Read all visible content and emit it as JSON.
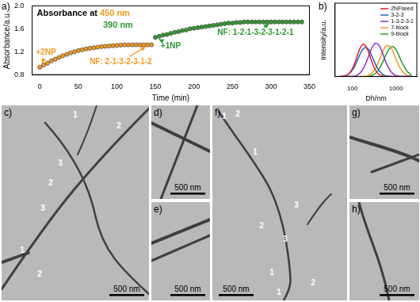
{
  "chart_data": [
    {
      "type": "scatter",
      "label": "a)",
      "title": "Absorbance at",
      "x_label": "Time (min)",
      "y_label": "Absorbance/a.u.",
      "series": [
        {
          "name": "450 nm",
          "color": "#f39a1e",
          "marker": "circle",
          "x": [
            0,
            5,
            10,
            15,
            20,
            25,
            30,
            35,
            40,
            45,
            50,
            55,
            60,
            65,
            70,
            75,
            80,
            85,
            90,
            95,
            100,
            105,
            110,
            115,
            120,
            125,
            130,
            135,
            140,
            145
          ],
          "values": [
            0.93,
            0.97,
            1.0,
            1.04,
            1.07,
            1.1,
            1.13,
            1.155,
            1.18,
            1.2,
            1.22,
            1.235,
            1.25,
            1.26,
            1.27,
            1.28,
            1.29,
            1.295,
            1.3,
            1.305,
            1.31,
            1.315,
            1.32,
            1.32,
            1.32,
            1.32,
            1.32,
            1.32,
            1.32,
            1.32
          ]
        },
        {
          "name": "390 nm",
          "color": "#2e9a2e",
          "marker": "circle",
          "x": [
            150,
            155,
            160,
            165,
            170,
            175,
            180,
            185,
            190,
            195,
            200,
            205,
            210,
            215,
            220,
            225,
            230,
            235,
            240,
            245,
            250,
            255,
            260,
            265,
            270,
            275,
            280,
            285,
            290,
            295,
            300,
            305,
            310,
            315,
            320,
            325,
            330,
            335,
            340
          ],
          "values": [
            1.45,
            1.47,
            1.49,
            1.5,
            1.52,
            1.54,
            1.55,
            1.57,
            1.58,
            1.6,
            1.61,
            1.62,
            1.63,
            1.64,
            1.65,
            1.66,
            1.67,
            1.68,
            1.69,
            1.7,
            1.7,
            1.71,
            1.71,
            1.72,
            1.72,
            1.72,
            1.72,
            1.72,
            1.72,
            1.72,
            1.72,
            1.72,
            1.72,
            1.72,
            1.72,
            1.72,
            1.72,
            1.72,
            1.72
          ]
        }
      ],
      "xlim": [
        -10,
        350
      ],
      "xticks": [
        0,
        50,
        100,
        150,
        200,
        250,
        300,
        350
      ],
      "ylim": [
        0.8,
        2.0
      ],
      "yticks": [
        0.8,
        1.2,
        1.6,
        {
          "value": 2,
          "label": "2.0"
        }
      ],
      "grid": false,
      "annotations": [
        {
          "text": "+2NP",
          "x": 8,
          "y": 1.18,
          "color": "#f39a1e",
          "arrow_to": [
            2,
            0.96
          ]
        },
        {
          "text": "NF: 2-1-3-2-3-1-2",
          "x": 105,
          "y": 1.02,
          "color": "#f39a1e",
          "arrow_to": [
            140,
            1.31
          ]
        },
        {
          "text": "+1NP",
          "x": 170,
          "y": 1.3,
          "color": "#2e9a2e",
          "arrow_to": [
            152,
            1.44
          ]
        },
        {
          "text": "NF: 1-2-1-3-2-3-1-2-1",
          "x": 280,
          "y": 1.53,
          "color": "#2e9a2e",
          "arrow_to": [
            300,
            1.71
          ]
        }
      ]
    },
    {
      "type": "line",
      "label": "b)",
      "x_label": "Dh/nm",
      "y_label": "Intensity/a.u.",
      "log": "x",
      "x": [
        50,
        60,
        80,
        100,
        120,
        150,
        180,
        220,
        270,
        330,
        400,
        500,
        600,
        750,
        900,
        1100,
        1400,
        1800,
        2300
      ],
      "series": [
        {
          "name": "2NFseed",
          "color": "#e02020",
          "values": [
            0.02,
            0.11,
            1.03,
            3.66,
            7.68,
            13.1,
            15,
            12.7,
            7.68,
            3.35,
            1.11,
            0.21,
            0.04,
            0,
            0,
            0,
            0,
            0,
            0
          ]
        },
        {
          "name": "3-2-3",
          "color": "#1f5fd0",
          "values": [
            0.03,
            0.15,
            0.98,
            3.01,
            5.97,
            10.4,
            13.0,
            13.1,
            10.2,
            6.16,
            3.01,
            0.98,
            0.31,
            0.06,
            0,
            0,
            0,
            0,
            0
          ]
        },
        {
          "name": "1-3-2-3-1",
          "color": "#8b2fc9",
          "values": [
            0,
            0,
            0.02,
            0.11,
            0.43,
            1.65,
            3.9,
            7.9,
            12.6,
            15.3,
            14.7,
            10.4,
            6.25,
            2.5,
            0.95,
            0.26,
            0.04,
            0,
            0
          ]
        },
        {
          "name": "7-block",
          "color": "#f39a1e",
          "values": [
            0,
            0,
            0,
            0,
            0,
            0.02,
            0.08,
            0.37,
            1.3,
            3.44,
            6.93,
            11.7,
            14.2,
            13.6,
            10.4,
            6.1,
            2.3,
            0.57,
            0.05
          ]
        },
        {
          "name": "9-block",
          "color": "#2e9a2e",
          "values": [
            0,
            0,
            0,
            0,
            0,
            0,
            0.02,
            0.1,
            0.42,
            1.32,
            3.2,
            6.9,
            10.5,
            13.5,
            13.6,
            10.8,
            6.1,
            2.4,
            0.6
          ]
        }
      ],
      "xlim": [
        40,
        3000
      ],
      "xticks": [
        100,
        1000
      ],
      "ylim": [
        0,
        34
      ],
      "tick_labels": "x",
      "legend": "upper right",
      "grid": false
    }
  ],
  "images": [
    {
      "label": "c)",
      "scale_bar": "500 nm",
      "markers": [
        "1",
        "2",
        "3",
        "2",
        "3",
        "1",
        "2"
      ]
    },
    {
      "label": "d)",
      "scale_bar": "500 nm",
      "markers": []
    },
    {
      "label": "e)",
      "scale_bar": "500 nm",
      "markers": []
    },
    {
      "label": "f)",
      "scale_bar": "500 nm",
      "markers": [
        "1",
        "2",
        "1",
        "3",
        "2",
        "3",
        "1",
        "2",
        "1"
      ]
    },
    {
      "label": "g)",
      "scale_bar": "500 nm",
      "markers": []
    },
    {
      "label": "h)",
      "scale_bar": "500 nm",
      "markers": []
    }
  ]
}
